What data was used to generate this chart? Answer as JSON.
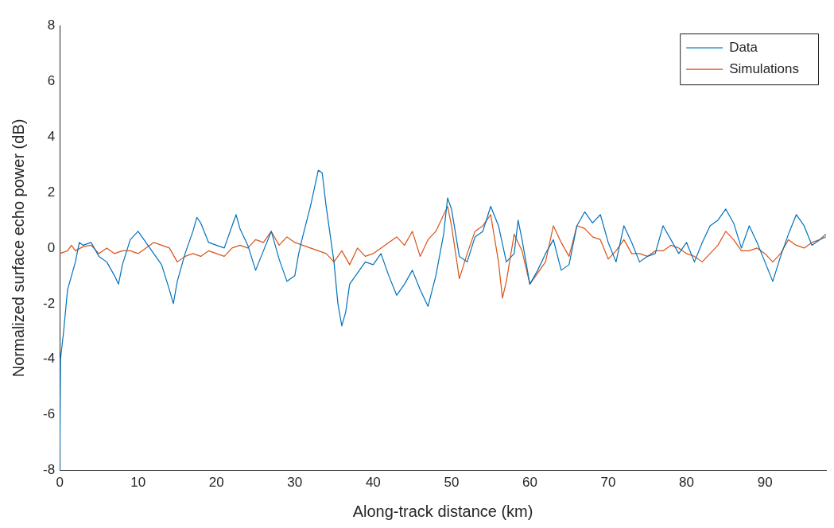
{
  "chart_data": {
    "type": "line",
    "xlabel": "Along-track distance (km)",
    "ylabel": "Normalized surface echo power (dB)",
    "xlim": [
      0,
      97.8
    ],
    "ylim": [
      -8,
      8
    ],
    "xticks": [
      0,
      10,
      20,
      30,
      40,
      50,
      60,
      70,
      80,
      90
    ],
    "yticks": [
      -8,
      -6,
      -4,
      -2,
      0,
      2,
      4,
      6,
      8
    ],
    "grid": false,
    "legend": "top right",
    "marker": "none",
    "line_style": "solid",
    "series": [
      {
        "name": "Data",
        "color": "#0072bd",
        "x": [
          0,
          0.1,
          0.5,
          1,
          2,
          2.5,
          3,
          4,
          5,
          6,
          7,
          7.5,
          8,
          9,
          10,
          11,
          12,
          13,
          14,
          14.5,
          15,
          16,
          17,
          17.5,
          18,
          19,
          20,
          21,
          22,
          22.5,
          23,
          24,
          25,
          26,
          27,
          28,
          29,
          30,
          30.5,
          31,
          32,
          33,
          33.5,
          34,
          35,
          35.5,
          36,
          36.5,
          37,
          38,
          39,
          40,
          41,
          42,
          43,
          44,
          45,
          46,
          47,
          48,
          49,
          49.5,
          50,
          51,
          52,
          53,
          54,
          55,
          56,
          57,
          58,
          58.5,
          59,
          60,
          61,
          62,
          63,
          64,
          65,
          66,
          67,
          68,
          69,
          70,
          71,
          72,
          73,
          74,
          75,
          76,
          77,
          78,
          79,
          80,
          81,
          82,
          83,
          84,
          85,
          86,
          87,
          88,
          89,
          90,
          91,
          92,
          93,
          94,
          95,
          96,
          97,
          97.8
        ],
        "values": [
          -8,
          -4,
          -3,
          -1.5,
          -0.5,
          0.2,
          0.1,
          0.2,
          -0.3,
          -0.5,
          -1,
          -1.3,
          -0.6,
          0.3,
          0.6,
          0.2,
          -0.2,
          -0.6,
          -1.5,
          -2,
          -1.2,
          -0.2,
          0.6,
          1.1,
          0.9,
          0.2,
          0.1,
          0,
          0.8,
          1.2,
          0.7,
          0.1,
          -0.8,
          -0.1,
          0.6,
          -0.4,
          -1.2,
          -1,
          -0.2,
          0.4,
          1.5,
          2.8,
          2.7,
          1.5,
          -0.5,
          -2,
          -2.8,
          -2.3,
          -1.3,
          -0.9,
          -0.5,
          -0.6,
          -0.2,
          -1,
          -1.7,
          -1.3,
          -0.8,
          -1.5,
          -2.1,
          -1,
          0.5,
          1.8,
          1.4,
          -0.3,
          -0.5,
          0.4,
          0.6,
          1.5,
          0.8,
          -0.5,
          -0.2,
          1,
          0.3,
          -1.3,
          -0.8,
          -0.2,
          0.3,
          -0.8,
          -0.6,
          0.8,
          1.3,
          0.9,
          1.2,
          0.2,
          -0.5,
          0.8,
          0.2,
          -0.5,
          -0.3,
          -0.2,
          0.8,
          0.3,
          -0.2,
          0.2,
          -0.5,
          0.2,
          0.8,
          1,
          1.4,
          0.9,
          0,
          0.8,
          0.2,
          -0.5,
          -1.2,
          -0.3,
          0.5,
          1.2,
          0.8,
          0.1,
          0.3,
          0.5
        ]
      },
      {
        "name": "Simulations",
        "color": "#d95319",
        "x": [
          0,
          1,
          1.5,
          2,
          3,
          4,
          5,
          6,
          7,
          8,
          9,
          10,
          11,
          12,
          13,
          14,
          15,
          16,
          17,
          18,
          19,
          20,
          21,
          22,
          23,
          24,
          25,
          26,
          27,
          28,
          29,
          30,
          31,
          32,
          33,
          34,
          35,
          36,
          37,
          38,
          39,
          40,
          41,
          42,
          43,
          44,
          45,
          46,
          47,
          48,
          49,
          49.5,
          50,
          51,
          52,
          53,
          54,
          55,
          56,
          56.5,
          57,
          58,
          59,
          60,
          61,
          62,
          63,
          64,
          65,
          66,
          67,
          68,
          69,
          70,
          71,
          72,
          73,
          74,
          75,
          76,
          77,
          78,
          79,
          80,
          81,
          82,
          83,
          84,
          85,
          86,
          87,
          88,
          89,
          90,
          91,
          92,
          93,
          94,
          95,
          96,
          97,
          97.8
        ],
        "values": [
          -0.2,
          -0.1,
          0.1,
          -0.1,
          0.05,
          0.1,
          -0.2,
          0,
          -0.2,
          -0.1,
          -0.1,
          -0.2,
          0,
          0.2,
          0.1,
          0,
          -0.5,
          -0.3,
          -0.2,
          -0.3,
          -0.1,
          -0.2,
          -0.3,
          0,
          0.1,
          0,
          0.3,
          0.2,
          0.6,
          0.1,
          0.4,
          0.2,
          0.1,
          0,
          -0.1,
          -0.2,
          -0.5,
          -0.1,
          -0.6,
          0,
          -0.3,
          -0.2,
          0,
          0.2,
          0.4,
          0.1,
          0.6,
          -0.3,
          0.3,
          0.6,
          1.2,
          1.5,
          0.8,
          -1.1,
          -0.2,
          0.6,
          0.8,
          1.2,
          -0.5,
          -1.8,
          -1.2,
          0.5,
          -0.1,
          -1.3,
          -0.9,
          -0.5,
          0.8,
          0.2,
          -0.3,
          0.8,
          0.7,
          0.4,
          0.3,
          -0.4,
          -0.1,
          0.3,
          -0.2,
          -0.2,
          -0.3,
          -0.1,
          -0.1,
          0.1,
          0,
          -0.2,
          -0.3,
          -0.5,
          -0.2,
          0.1,
          0.6,
          0.3,
          -0.1,
          -0.1,
          0,
          -0.2,
          -0.5,
          -0.2,
          0.3,
          0.1,
          0,
          0.2,
          0.3,
          0.4
        ]
      }
    ]
  }
}
